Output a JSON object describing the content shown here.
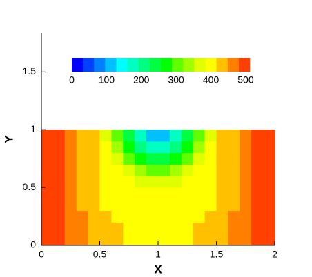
{
  "chart_data": {
    "type": "contour",
    "x_label": "X",
    "y_label": "Y",
    "xlim": [
      0,
      2
    ],
    "ylim": [
      0,
      1.8
    ],
    "xticks": [
      0,
      0.5,
      1,
      1.5,
      2
    ],
    "yticks": [
      0,
      0.5,
      1,
      1.5
    ],
    "x": [
      0.05,
      0.15,
      0.25,
      0.35,
      0.45,
      0.55,
      0.65,
      0.75,
      0.85,
      0.95,
      1.05,
      1.15,
      1.25,
      1.35,
      1.45,
      1.55,
      1.65,
      1.75,
      1.85,
      1.95
    ],
    "y": [
      0.05,
      0.15,
      0.25,
      0.35,
      0.45,
      0.55,
      0.65,
      0.75,
      0.85,
      0.95
    ],
    "z": [
      [
        500,
        485,
        470,
        455,
        445,
        435,
        425,
        415,
        400,
        390,
        390,
        400,
        415,
        425,
        435,
        445,
        455,
        470,
        485,
        500
      ],
      [
        500,
        484,
        468,
        452,
        440,
        430,
        420,
        410,
        398,
        390,
        390,
        398,
        410,
        420,
        430,
        440,
        452,
        468,
        484,
        500
      ],
      [
        500,
        482,
        466,
        450,
        436,
        424,
        412,
        402,
        395,
        390,
        390,
        395,
        402,
        412,
        424,
        436,
        450,
        466,
        482,
        500
      ],
      [
        500,
        480,
        460,
        440,
        425,
        410,
        400,
        395,
        392,
        390,
        390,
        392,
        395,
        400,
        410,
        425,
        440,
        460,
        480,
        500
      ],
      [
        500,
        480,
        460,
        440,
        425,
        410,
        400,
        395,
        392,
        390,
        390,
        392,
        395,
        400,
        410,
        425,
        440,
        460,
        480,
        500
      ],
      [
        500,
        480,
        460,
        440,
        425,
        410,
        400,
        395,
        378,
        364,
        364,
        378,
        395,
        400,
        410,
        425,
        440,
        460,
        480,
        500
      ],
      [
        500,
        480,
        460,
        440,
        425,
        410,
        397,
        356,
        324,
        306,
        306,
        324,
        356,
        397,
        410,
        425,
        440,
        460,
        480,
        500
      ],
      [
        500,
        480,
        460,
        440,
        425,
        410,
        360,
        310,
        269,
        243,
        243,
        269,
        310,
        360,
        410,
        425,
        440,
        460,
        480,
        500
      ],
      [
        500,
        480,
        460,
        440,
        425,
        395,
        331,
        271,
        215,
        174,
        174,
        215,
        271,
        331,
        395,
        425,
        440,
        460,
        480,
        500
      ],
      [
        500,
        480,
        460,
        440,
        425,
        383,
        314,
        247,
        175,
        99,
        99,
        175,
        247,
        314,
        383,
        425,
        440,
        460,
        480,
        500
      ]
    ],
    "levels": [
      0,
      32,
      64,
      96,
      128,
      160,
      192,
      224,
      256,
      288,
      320,
      352,
      384,
      416,
      448,
      480,
      512
    ],
    "colors": [
      "#0000ff",
      "#0040ff",
      "#0080ff",
      "#00c0ff",
      "#00ffff",
      "#00ffc0",
      "#00ff80",
      "#00ff40",
      "#00ff00",
      "#60ff00",
      "#a0ff00",
      "#e0ff00",
      "#ffff00",
      "#ffc000",
      "#ff8000",
      "#ff4000"
    ],
    "colorbar_ticks": [
      0,
      100,
      200,
      300,
      400,
      500
    ]
  }
}
